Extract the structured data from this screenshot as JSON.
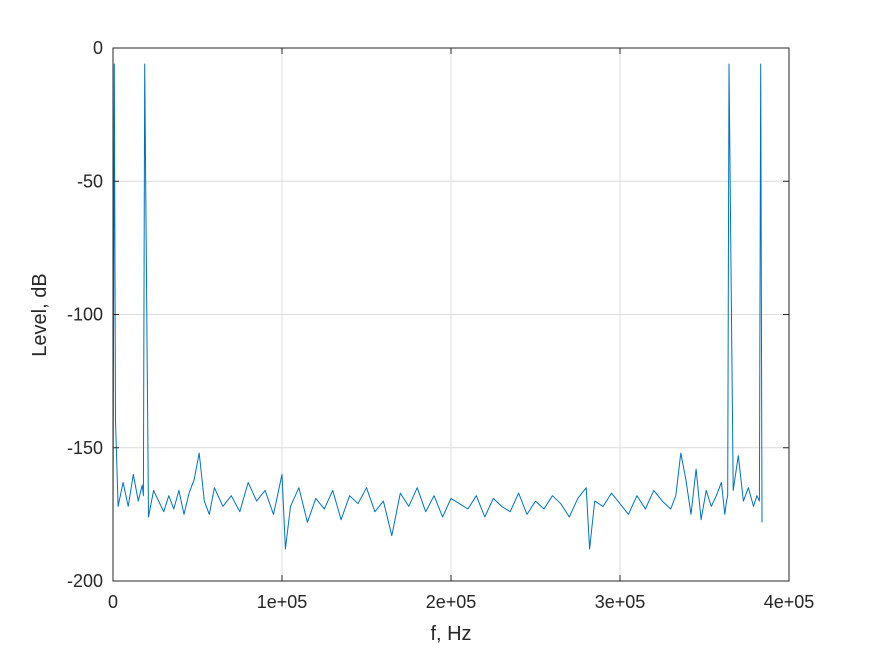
{
  "chart_data": {
    "type": "line",
    "title": "",
    "xlabel": "f, Hz",
    "ylabel": "Level, dB",
    "xlim": [
      0,
      400000
    ],
    "ylim": [
      -200,
      0
    ],
    "grid": true,
    "legend": "none",
    "x_ticks": [
      0,
      100000,
      200000,
      300000,
      400000
    ],
    "x_tick_labels": [
      "0",
      "1e+05",
      "2e+05",
      "3e+05",
      "4e+05"
    ],
    "y_ticks": [
      0,
      -50,
      -100,
      -150,
      -200
    ],
    "y_tick_labels": [
      "0",
      "-50",
      "-100",
      "-150",
      "-200"
    ],
    "series": [
      {
        "color": "#0072bd",
        "x": [
          0,
          750,
          1500,
          3000,
          6000,
          9000,
          12000,
          15000,
          17250,
          18000,
          18750,
          21000,
          24000,
          27000,
          30000,
          33000,
          36000,
          39000,
          42000,
          45000,
          48000,
          51000,
          54000,
          57000,
          60000,
          65000,
          70000,
          75000,
          80000,
          85000,
          90000,
          95000,
          100000,
          102000,
          105000,
          110000,
          115000,
          120000,
          125000,
          130000,
          135000,
          140000,
          145000,
          150000,
          155000,
          160000,
          165000,
          170000,
          175000,
          180000,
          185000,
          190000,
          195000,
          200000,
          205000,
          210000,
          215000,
          220000,
          225000,
          230000,
          235000,
          240000,
          245000,
          250000,
          255000,
          260000,
          265000,
          270000,
          275000,
          280000,
          282000,
          285000,
          290000,
          295000,
          300000,
          305000,
          310000,
          315000,
          320000,
          325000,
          330000,
          333000,
          336000,
          339000,
          342000,
          345000,
          348000,
          351000,
          354000,
          357000,
          360000,
          362000,
          363000,
          363750,
          364500,
          367000,
          370000,
          373000,
          376000,
          379000,
          381000,
          382500,
          383250,
          384000
        ],
        "values": [
          -178,
          -6,
          -140,
          -172,
          -163,
          -172,
          -160,
          -170,
          -164,
          -168,
          -6,
          -176,
          -166,
          -170,
          -174,
          -168,
          -173,
          -166,
          -175,
          -167,
          -162,
          -152,
          -170,
          -175,
          -165,
          -172,
          -168,
          -174,
          -163,
          -170,
          -166,
          -175,
          -160,
          -188,
          -172,
          -165,
          -178,
          -169,
          -173,
          -166,
          -177,
          -168,
          -171,
          -165,
          -174,
          -170,
          -183,
          -167,
          -172,
          -165,
          -174,
          -168,
          -176,
          -169,
          -171,
          -173,
          -168,
          -176,
          -169,
          -172,
          -174,
          -167,
          -175,
          -170,
          -173,
          -168,
          -171,
          -176,
          -169,
          -165,
          -188,
          -170,
          -172,
          -167,
          -171,
          -175,
          -168,
          -173,
          -166,
          -170,
          -173,
          -168,
          -152,
          -162,
          -175,
          -158,
          -177,
          -166,
          -172,
          -168,
          -163,
          -175,
          -170,
          -168,
          -6,
          -166,
          -153,
          -170,
          -165,
          -172,
          -168,
          -170,
          -6,
          -178
        ]
      }
    ]
  }
}
